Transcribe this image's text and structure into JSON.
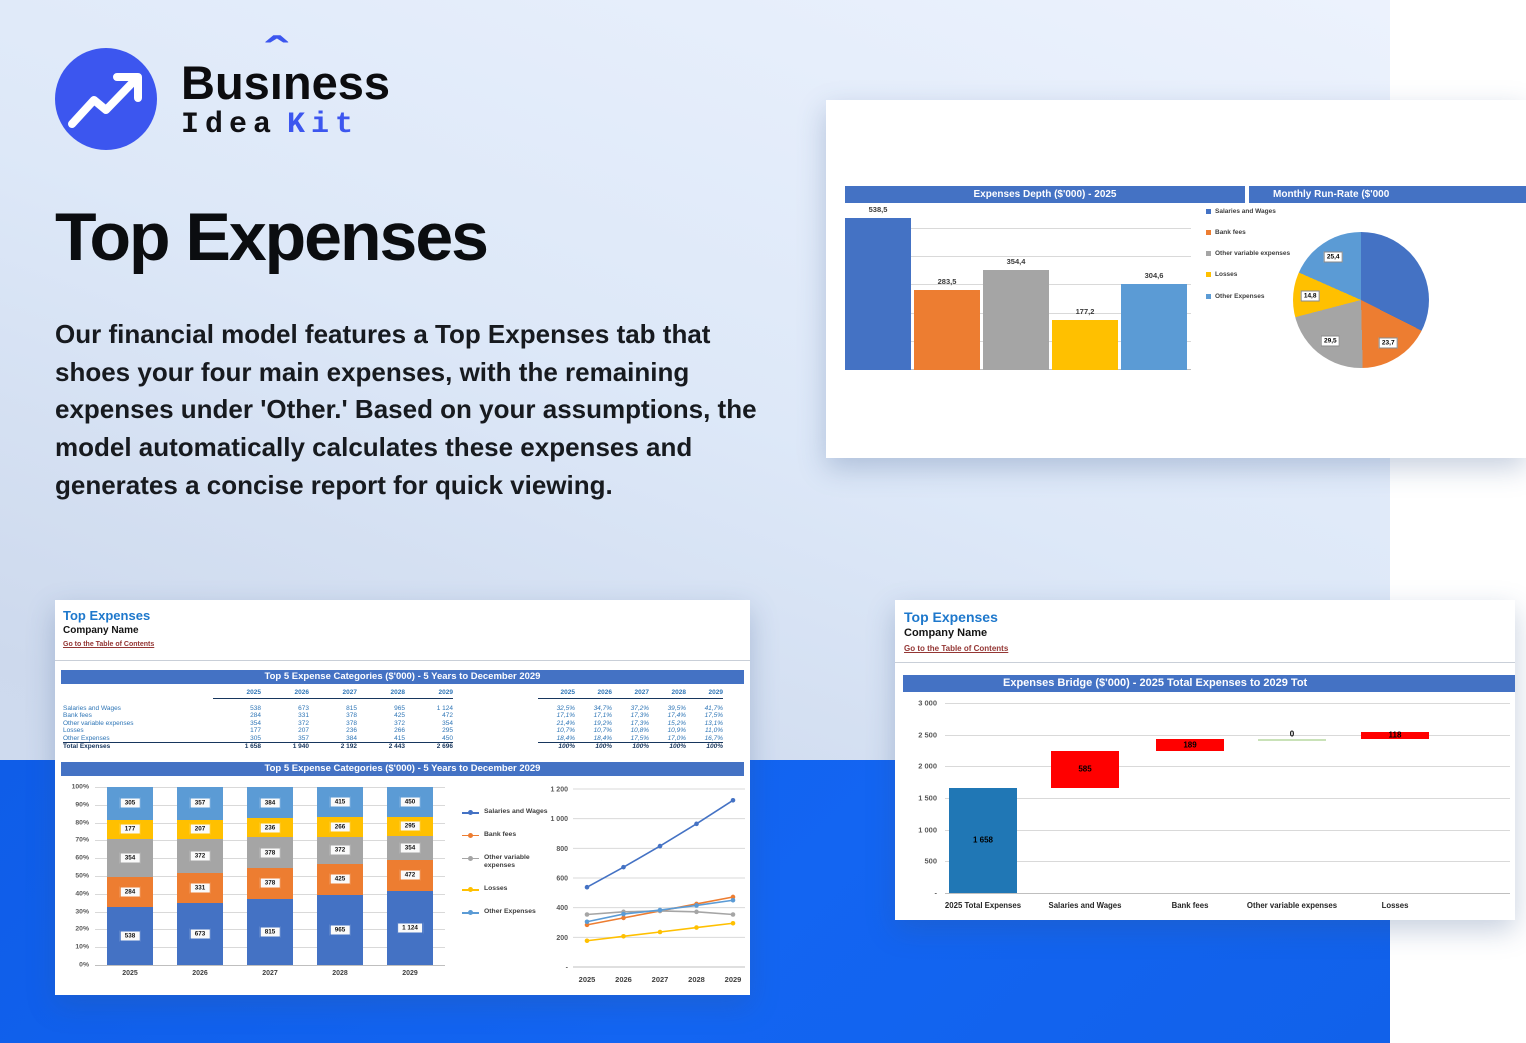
{
  "palette": {
    "accent_blue": "#3c56ef",
    "band_blue": "#1161ed",
    "excel_header": "#4472C4",
    "series": [
      "#4472C4",
      "#ED7D31",
      "#A5A5A5",
      "#FFC000",
      "#5B9BD5"
    ],
    "waterfall_total": "#2077B5",
    "waterfall_increase": "#FF0000",
    "waterfall_zero": "#C9E2B8",
    "sheet_title_blue": "#1E78CC",
    "link_maroon": "#943634",
    "table_blue": "#2E75B6",
    "table_navy": "#17365D"
  },
  "logo": {
    "icon": "trend-up-arrow-icon",
    "word_prefix": "Bus",
    "word_i": "ı",
    "caret": "ˆ",
    "word_suffix": "ness",
    "line2_black": "Idea",
    "line2_accent": "Kit"
  },
  "hero": {
    "title": "Top Expenses",
    "description": "Our financial model features a Top Expenses tab that shoes your four main expenses, with the remaining expenses under 'Other.' Based on your assumptions, the model automatically calculates these expenses and generates a concise report for quick viewing."
  },
  "depth_card": {
    "header_left": "Expenses Depth ($'000) - 2025",
    "header_right": "Monthly Run-Rate ($'000"
  },
  "sheet1": {
    "title": "Top Expenses",
    "company": "Company Name",
    "link": "Go to the Table of Contents",
    "section1_title": "Top 5 Expense Categories ($'000) - 5 Years to December 2029",
    "section2_title": "Top 5 Expense Categories ($'000) - 5 Years to December 2029",
    "table": {
      "years": [
        "2025",
        "2026",
        "2027",
        "2028",
        "2029"
      ],
      "rows": [
        {
          "label": "Salaries and Wages",
          "values": [
            "538",
            "673",
            "815",
            "965",
            "1 124"
          ],
          "pct": [
            "32,5%",
            "34,7%",
            "37,2%",
            "39,5%",
            "41,7%"
          ]
        },
        {
          "label": "Bank fees",
          "values": [
            "284",
            "331",
            "378",
            "425",
            "472"
          ],
          "pct": [
            "17,1%",
            "17,1%",
            "17,3%",
            "17,4%",
            "17,5%"
          ]
        },
        {
          "label": "Other variable expenses",
          "values": [
            "354",
            "372",
            "378",
            "372",
            "354"
          ],
          "pct": [
            "21,4%",
            "19,2%",
            "17,3%",
            "15,2%",
            "13,1%"
          ]
        },
        {
          "label": "Losses",
          "values": [
            "177",
            "207",
            "236",
            "266",
            "295"
          ],
          "pct": [
            "10,7%",
            "10,7%",
            "10,8%",
            "10,9%",
            "11,0%"
          ]
        },
        {
          "label": "Other Expenses",
          "values": [
            "305",
            "357",
            "384",
            "415",
            "450"
          ],
          "pct": [
            "18,4%",
            "18,4%",
            "17,5%",
            "17,0%",
            "16,7%"
          ]
        }
      ],
      "total": {
        "label": "Total Expenses",
        "values": [
          "1 658",
          "1 940",
          "2 192",
          "2 443",
          "2 696"
        ],
        "pct": [
          "100%",
          "100%",
          "100%",
          "100%",
          "100%"
        ]
      }
    }
  },
  "sheet2": {
    "title": "Top Expenses",
    "company": "Company Name",
    "link": "Go to the Table of Contents",
    "section_title": "Expenses Bridge ($'000) - 2025 Total Expenses to 2029 Tot"
  },
  "chart_data": [
    {
      "id": "expenses-depth-bar",
      "type": "bar",
      "title": "Expenses Depth ($'000) - 2025",
      "categories": [
        "Salaries and Wages",
        "Bank fees",
        "Other variable expenses",
        "Losses",
        "Other Expenses"
      ],
      "values": [
        538.5,
        283.5,
        354.4,
        177.2,
        304.6
      ],
      "labels": [
        "538,5",
        "283,5",
        "354,4",
        "177,2",
        "304,6"
      ],
      "colors": [
        "#4472C4",
        "#ED7D31",
        "#A5A5A5",
        "#FFC000",
        "#5B9BD5"
      ],
      "ylim": [
        0,
        550
      ],
      "gridline_step": 100,
      "grid": true,
      "legend": [
        "Salaries and Wages",
        "Bank fees",
        "Other variable expenses",
        "Losses",
        "Other Expenses"
      ],
      "legend_position": "right"
    },
    {
      "id": "monthly-run-rate-pie",
      "type": "pie",
      "title": "Monthly Run-Rate ($'000",
      "slices": [
        {
          "name": "Salaries and Wages",
          "value": 44.9,
          "label": "",
          "color": "#4472C4"
        },
        {
          "name": "Bank fees",
          "value": 23.7,
          "label": "23,7",
          "color": "#ED7D31"
        },
        {
          "name": "Other variable expenses",
          "value": 29.5,
          "label": "29,5",
          "color": "#A5A5A5"
        },
        {
          "name": "Losses",
          "value": 14.8,
          "label": "14,8",
          "color": "#FFC000"
        },
        {
          "name": "Other Expenses",
          "value": 25.4,
          "label": "25,4",
          "color": "#5B9BD5"
        }
      ]
    },
    {
      "id": "top5-stacked",
      "type": "bar",
      "stacked": "percent",
      "title": "Top 5 Expense Categories ($'000) - 5 Years to December 2029",
      "categories": [
        "2025",
        "2026",
        "2027",
        "2028",
        "2029"
      ],
      "series": [
        {
          "name": "Salaries and Wages",
          "color": "#4472C4",
          "values": [
            538,
            673,
            815,
            965,
            1124
          ],
          "labels": [
            "538",
            "673",
            "815",
            "965",
            "1 124"
          ]
        },
        {
          "name": "Bank fees",
          "color": "#ED7D31",
          "values": [
            284,
            331,
            378,
            425,
            472
          ],
          "labels": [
            "284",
            "331",
            "378",
            "425",
            "472"
          ]
        },
        {
          "name": "Other variable expenses",
          "color": "#A5A5A5",
          "values": [
            354,
            372,
            378,
            372,
            354
          ],
          "labels": [
            "354",
            "372",
            "378",
            "372",
            "354"
          ]
        },
        {
          "name": "Losses",
          "color": "#FFC000",
          "values": [
            177,
            207,
            236,
            266,
            295
          ],
          "labels": [
            "177",
            "207",
            "236",
            "266",
            "295"
          ]
        },
        {
          "name": "Other Expenses",
          "color": "#5B9BD5",
          "values": [
            305,
            357,
            384,
            415,
            450
          ],
          "labels": [
            "305",
            "357",
            "384",
            "415",
            "450"
          ]
        }
      ],
      "y_ticks": [
        "0%",
        "10%",
        "20%",
        "30%",
        "40%",
        "50%",
        "60%",
        "70%",
        "80%",
        "90%",
        "100%"
      ],
      "grid": true,
      "legend_position": "right"
    },
    {
      "id": "top5-lines",
      "type": "line",
      "x": [
        "2025",
        "2026",
        "2027",
        "2028",
        "2029"
      ],
      "series": [
        {
          "name": "Salaries and Wages",
          "color": "#4472C4",
          "values": [
            538,
            673,
            815,
            965,
            1124
          ]
        },
        {
          "name": "Bank fees",
          "color": "#ED7D31",
          "values": [
            284,
            331,
            378,
            425,
            472
          ]
        },
        {
          "name": "Other variable expenses",
          "color": "#A5A5A5",
          "values": [
            354,
            372,
            378,
            372,
            354
          ]
        },
        {
          "name": "Losses",
          "color": "#FFC000",
          "values": [
            177,
            207,
            236,
            266,
            295
          ]
        },
        {
          "name": "Other Expenses",
          "color": "#5B9BD5",
          "values": [
            305,
            357,
            384,
            415,
            450
          ]
        }
      ],
      "ylim": [
        0,
        1200
      ],
      "y_ticks": [
        "-",
        "200",
        "400",
        "600",
        "800",
        "1 000",
        "1 200"
      ],
      "grid": true,
      "legend": [
        "Salaries and Wages",
        "Bank fees",
        "Other variable expenses",
        "Losses",
        "Other Expenses"
      ],
      "legend_position": "left"
    },
    {
      "id": "expenses-bridge",
      "type": "bar",
      "subtype": "waterfall",
      "title": "Expenses Bridge ($'000) - 2025 Total Expenses to 2029 Tot",
      "categories": [
        "2025 Total Expenses",
        "Salaries and Wages",
        "Bank fees",
        "Other variable expenses",
        "Losses"
      ],
      "values": [
        1658,
        585,
        189,
        0,
        118
      ],
      "labels": [
        "1 658",
        "585",
        "189",
        "0",
        "118"
      ],
      "bar_types": [
        "total",
        "increase",
        "increase",
        "zero",
        "increase"
      ],
      "ylim": [
        0,
        3000
      ],
      "y_ticks": [
        "-",
        "500",
        "1 000",
        "1 500",
        "2 000",
        "2 500",
        "3 000"
      ],
      "grid": true
    }
  ]
}
